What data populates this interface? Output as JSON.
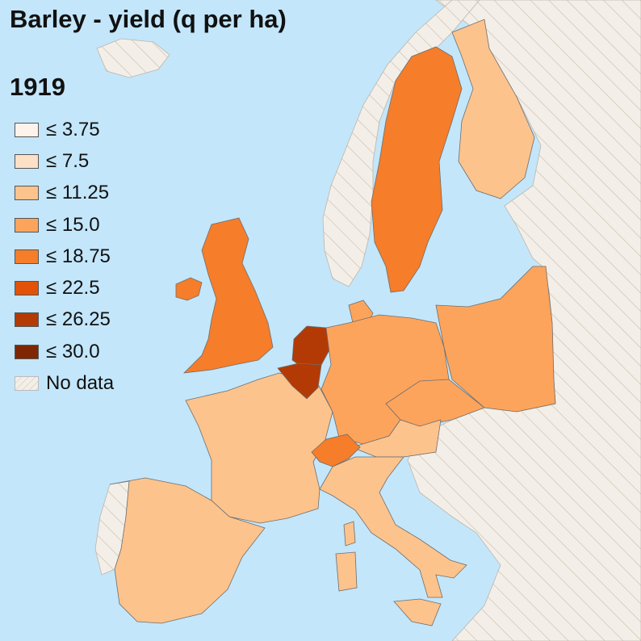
{
  "title": "Barley - yield (q per ha)",
  "year": "1919",
  "colors": {
    "sea": "#c3e6fa",
    "no_data_fill": "#f3efe8",
    "no_data_hatch": "#d9cfc2",
    "border": "#6e6e6e"
  },
  "legend": [
    {
      "label": "≤ 3.75",
      "color": "#fef3ea"
    },
    {
      "label": "≤ 7.5",
      "color": "#fde0c6"
    },
    {
      "label": "≤ 11.25",
      "color": "#fdc38d"
    },
    {
      "label": "≤ 15.0",
      "color": "#fda45c"
    },
    {
      "label": "≤ 18.75",
      "color": "#f67d2a"
    },
    {
      "label": "≤ 22.5",
      "color": "#e25208"
    },
    {
      "label": "≤ 26.25",
      "color": "#b33a04"
    },
    {
      "label": "≤ 30.0",
      "color": "#7f2704"
    },
    {
      "label": "No data",
      "color": "nodata"
    }
  ],
  "regions": [
    {
      "name": "France",
      "class": "≤ 11.25"
    },
    {
      "name": "Spain",
      "class": "≤ 11.25"
    },
    {
      "name": "Italy",
      "class": "≤ 11.25"
    },
    {
      "name": "Finland",
      "class": "≤ 11.25"
    },
    {
      "name": "Austria",
      "class": "≤ 11.25"
    },
    {
      "name": "Germany",
      "class": "≤ 15.0"
    },
    {
      "name": "Poland",
      "class": "≤ 15.0"
    },
    {
      "name": "Czechoslovakia",
      "class": "≤ 15.0"
    },
    {
      "name": "Denmark",
      "class": "≤ 15.0"
    },
    {
      "name": "Sweden",
      "class": "≤ 18.75"
    },
    {
      "name": "United Kingdom",
      "class": "≤ 18.75"
    },
    {
      "name": "Ireland",
      "class": "≤ 18.75"
    },
    {
      "name": "Switzerland",
      "class": "≤ 18.75"
    },
    {
      "name": "Netherlands",
      "class": "≤ 26.25"
    },
    {
      "name": "Belgium",
      "class": "≤ 26.25"
    },
    {
      "name": "Norway",
      "class": "No data"
    },
    {
      "name": "Iceland",
      "class": "No data"
    },
    {
      "name": "Portugal",
      "class": "No data"
    },
    {
      "name": "Balkans and Eastern Europe",
      "class": "No data"
    }
  ]
}
